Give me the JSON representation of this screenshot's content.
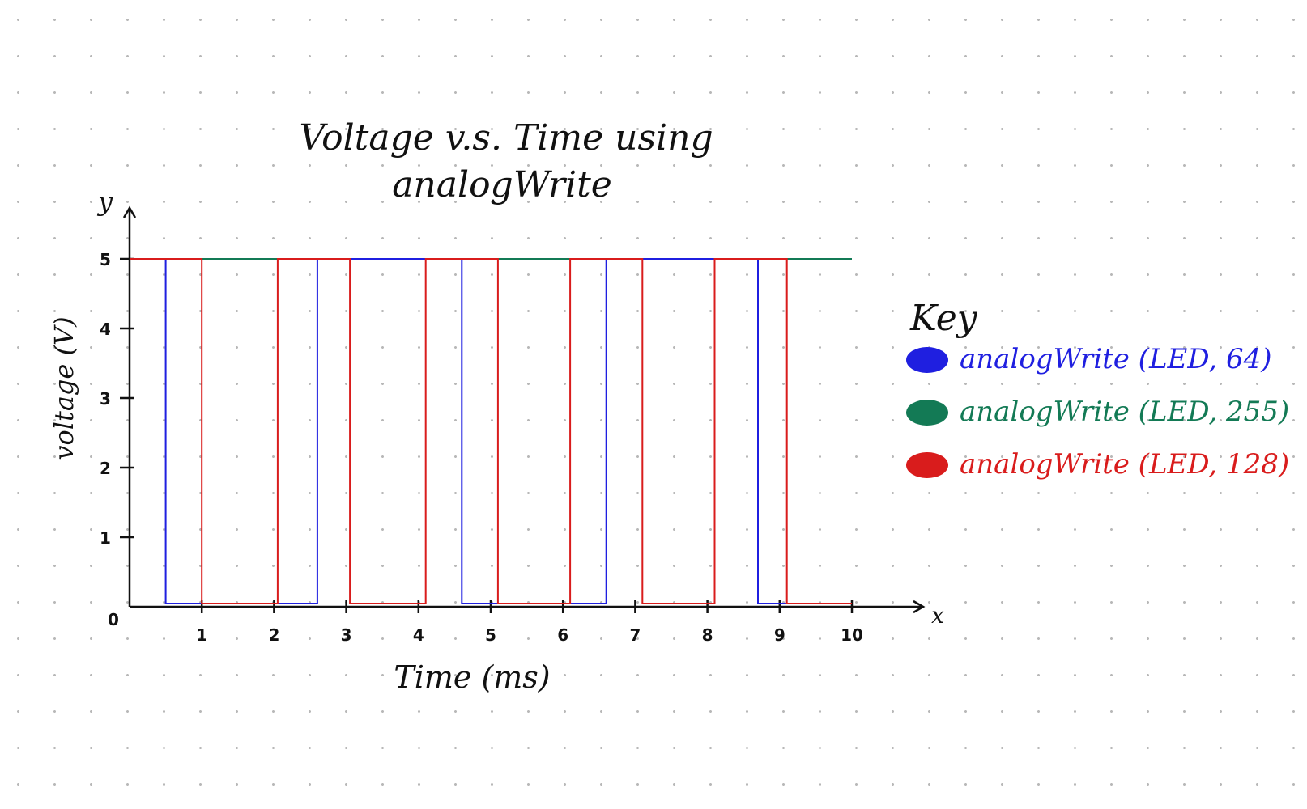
{
  "chart_data": {
    "type": "line",
    "title_line1": "Voltage v.s. Time using",
    "title_line2": "analogWrite",
    "xlabel": "Time (ms)",
    "ylabel": "voltage (V)",
    "x_axis_letter": "x",
    "y_axis_letter": "y",
    "origin_label": "0",
    "xlim": [
      0,
      10
    ],
    "ylim": [
      0,
      5
    ],
    "x_ticks": [
      1,
      2,
      3,
      4,
      5,
      6,
      7,
      8,
      9,
      10
    ],
    "y_ticks": [
      1,
      2,
      3,
      4,
      5
    ],
    "grid": false,
    "legend_title": "Key",
    "legend_position": "right",
    "series": [
      {
        "name": "analogWrite (LED, 64)",
        "color": "#1f1fe0",
        "style": "step",
        "x": [
          0,
          0.5,
          0.5,
          2.6,
          2.6,
          4.6,
          4.6,
          6.6,
          6.6,
          8.7,
          8.7,
          10
        ],
        "y": [
          5,
          5,
          0,
          0,
          5,
          5,
          0,
          0,
          5,
          5,
          0,
          0
        ]
      },
      {
        "name": "analogWrite (LED, 255)",
        "color": "#137a55",
        "style": "step",
        "x": [
          0,
          10
        ],
        "y": [
          5,
          5
        ]
      },
      {
        "name": "analogWrite (LED, 128)",
        "color": "#d91c1c",
        "style": "step",
        "x": [
          0,
          1,
          1,
          2.05,
          2.05,
          3.05,
          3.05,
          4.1,
          4.1,
          5.1,
          5.1,
          6.1,
          6.1,
          7.1,
          7.1,
          8.1,
          8.1,
          9.1,
          9.1,
          10
        ],
        "y": [
          5,
          5,
          0,
          0,
          5,
          5,
          0,
          0,
          5,
          5,
          0,
          0,
          5,
          5,
          0,
          0,
          5,
          5,
          0,
          0
        ]
      }
    ]
  }
}
